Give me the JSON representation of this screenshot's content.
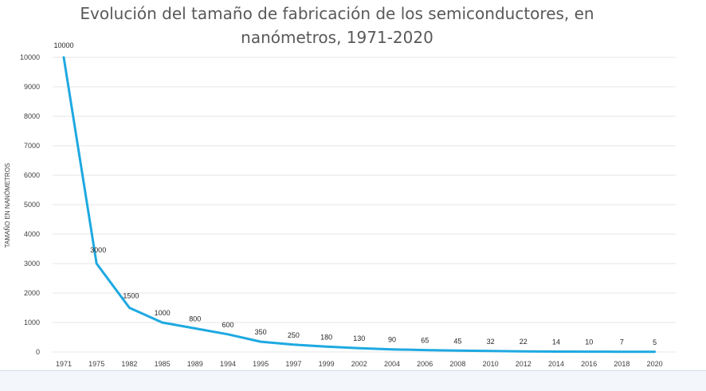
{
  "chart_data": {
    "type": "line",
    "title_lines": [
      "Evolución del tamaño de fabricación de los semiconductores, en",
      "nanómetros, 1971-2020"
    ],
    "ylabel": "TAMAÑO EN NANÓMETROS",
    "xlabel": "",
    "ylim": [
      0,
      10000
    ],
    "y_ticks": [
      0,
      1000,
      2000,
      3000,
      4000,
      5000,
      6000,
      7000,
      8000,
      9000,
      10000
    ],
    "grid": true,
    "legend": "none",
    "categories": [
      "1971",
      "1975",
      "1982",
      "1985",
      "1989",
      "1994",
      "1995",
      "1997",
      "1999",
      "2002",
      "2004",
      "2006",
      "2008",
      "2010",
      "2012",
      "2014",
      "2016",
      "2018",
      "2020"
    ],
    "series": [
      {
        "values": [
          10000,
          3000,
          1500,
          1000,
          800,
          600,
          350,
          250,
          180,
          130,
          90,
          65,
          45,
          32,
          22,
          14,
          10,
          7,
          5
        ],
        "color": "#1ea9e1"
      }
    ]
  }
}
